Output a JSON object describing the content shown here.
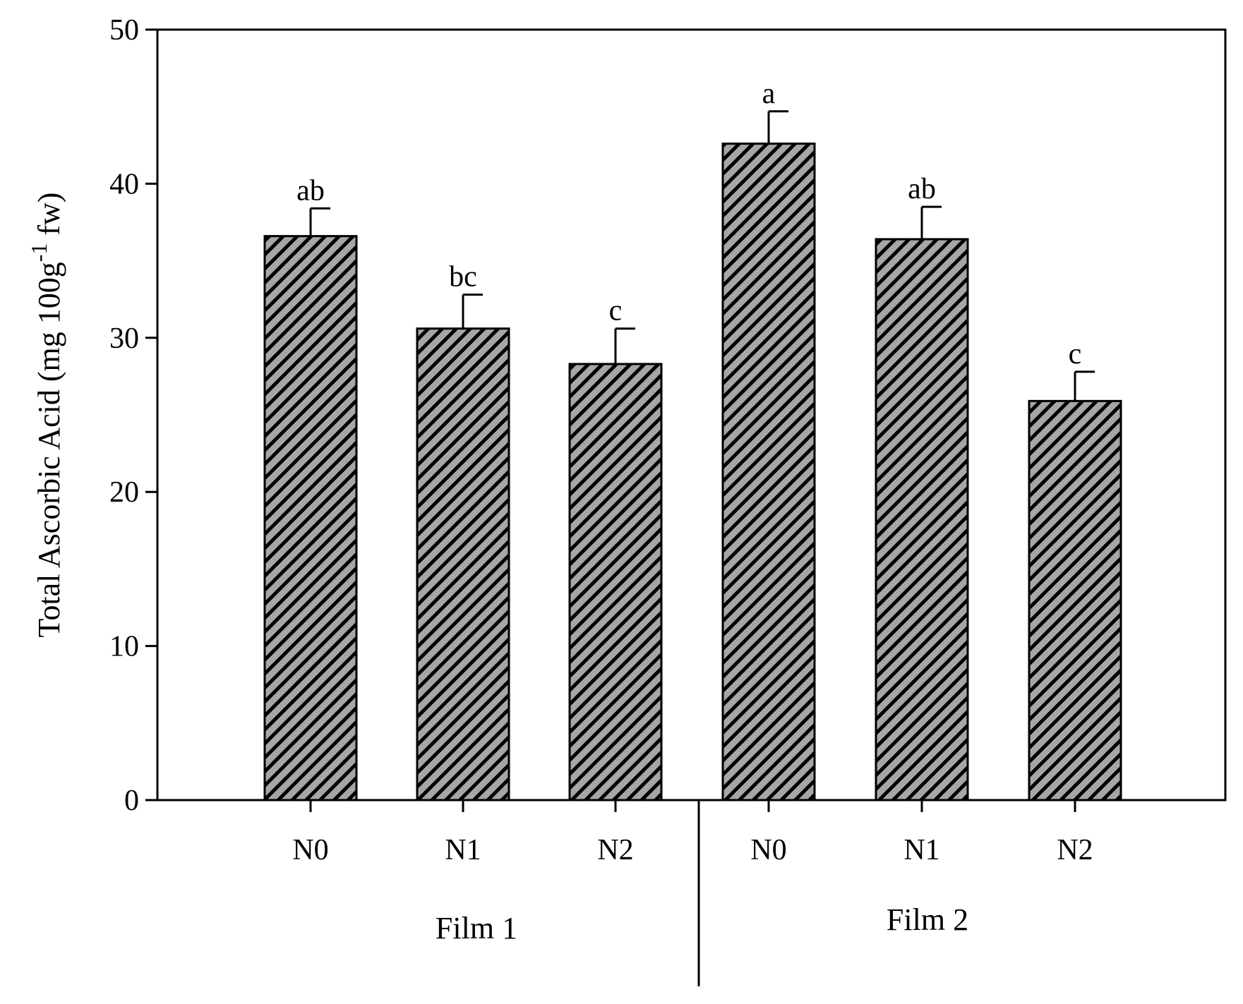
{
  "chart_data": {
    "type": "bar",
    "ylabel": "Total Ascorbic Acid (mg 100g",
    "ylabel_sup": "-1",
    "ylabel_tail": " fw)",
    "ylim": [
      0,
      50
    ],
    "yticks": [
      0,
      10,
      20,
      30,
      40,
      50
    ],
    "grid": false,
    "groups": [
      {
        "label": "Film 1",
        "categories": [
          "N0",
          "N1",
          "N2"
        ]
      },
      {
        "label": "Film 2",
        "categories": [
          "N0",
          "N1",
          "N2"
        ]
      }
    ],
    "values": [
      36.6,
      30.6,
      28.3,
      42.6,
      36.4,
      25.9
    ],
    "errors": [
      1.8,
      2.2,
      2.3,
      2.1,
      2.1,
      1.9
    ],
    "letters": [
      "ab",
      "bc",
      "c",
      "a",
      "ab",
      "c"
    ],
    "colors": {
      "bar_fill": "#a6a6a6",
      "hatch": "#000000",
      "axis": "#000000"
    }
  }
}
